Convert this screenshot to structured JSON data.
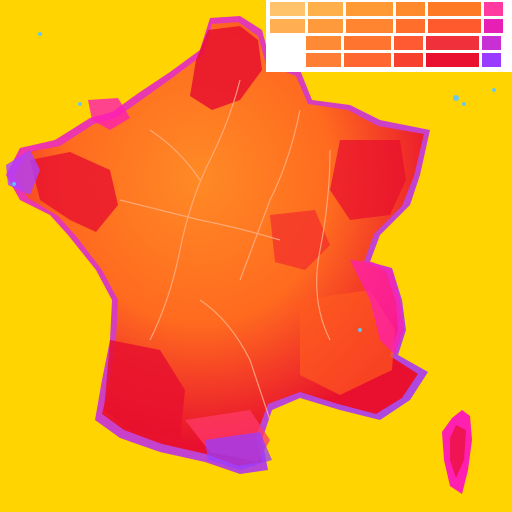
{
  "map": {
    "colors": {
      "sea": "#FFD400",
      "land_base": "#FF7A1A",
      "land_hot": "#E8102E",
      "land_mid": "#FF5A1F",
      "edge_magenta": "#FF1FB0",
      "edge_violet": "#9A3CFF",
      "river": "#FFB38A",
      "border_line": "#FFFFFF"
    },
    "legend": {
      "rows": 4,
      "columns": 6,
      "row_colors": [
        [
          "#FFC46B",
          "#FFB04A",
          "#FF9A35",
          "#FF8A2E",
          "#FF7A25",
          "#FF3AA0"
        ],
        [
          "#FFAE52",
          "#FF9A3C",
          "#FF8530",
          "#FF6E2A",
          "#FF5A2E",
          "#E81FB5"
        ],
        [
          "#FF9F45",
          "#FF8A35",
          "#FF7530",
          "#FF5A32",
          "#F0303A",
          "#C830D5"
        ],
        [
          "#FF9440",
          "#FF7E35",
          "#FF6630",
          "#F8402E",
          "#E8102E",
          "#9A3CFF"
        ]
      ]
    },
    "icons": [
      "island-corsica-icon",
      "coast-speckle-icon"
    ]
  }
}
